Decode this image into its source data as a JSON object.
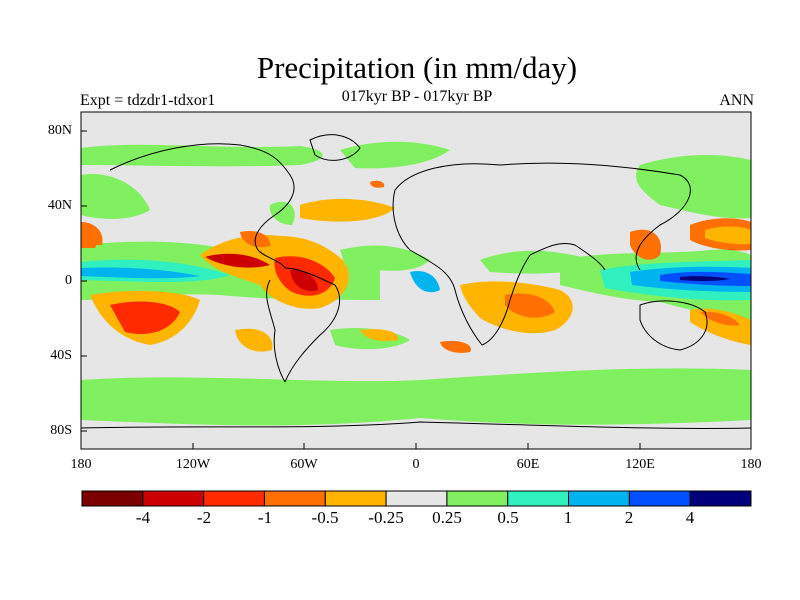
{
  "header": {
    "title": "Precipitation (in mm/day)",
    "subtitle": "017kyr BP - 017kyr BP",
    "experiment": "Expt = tdzdr1-tdxor1",
    "season": "ANN"
  },
  "axes": {
    "lat_ticks": [
      "80N",
      "40N",
      "0",
      "40S",
      "80S"
    ],
    "lon_ticks": [
      "180",
      "120W",
      "60W",
      "0",
      "60E",
      "120E",
      "180"
    ]
  },
  "colorbar": {
    "labels": [
      "-4",
      "-2",
      "-1",
      "-0.5",
      "-0.25",
      "0.25",
      "0.5",
      "1",
      "2",
      "4"
    ],
    "colors": [
      "#7a0000",
      "#cc0000",
      "#ff2a00",
      "#ff7000",
      "#ffb400",
      "#e6e6e6",
      "#80f060",
      "#30f0c0",
      "#00b4f0",
      "#0050ff",
      "#00007a"
    ]
  },
  "colors": {
    "background": "#e6e6e6",
    "coast": "#000000"
  }
}
